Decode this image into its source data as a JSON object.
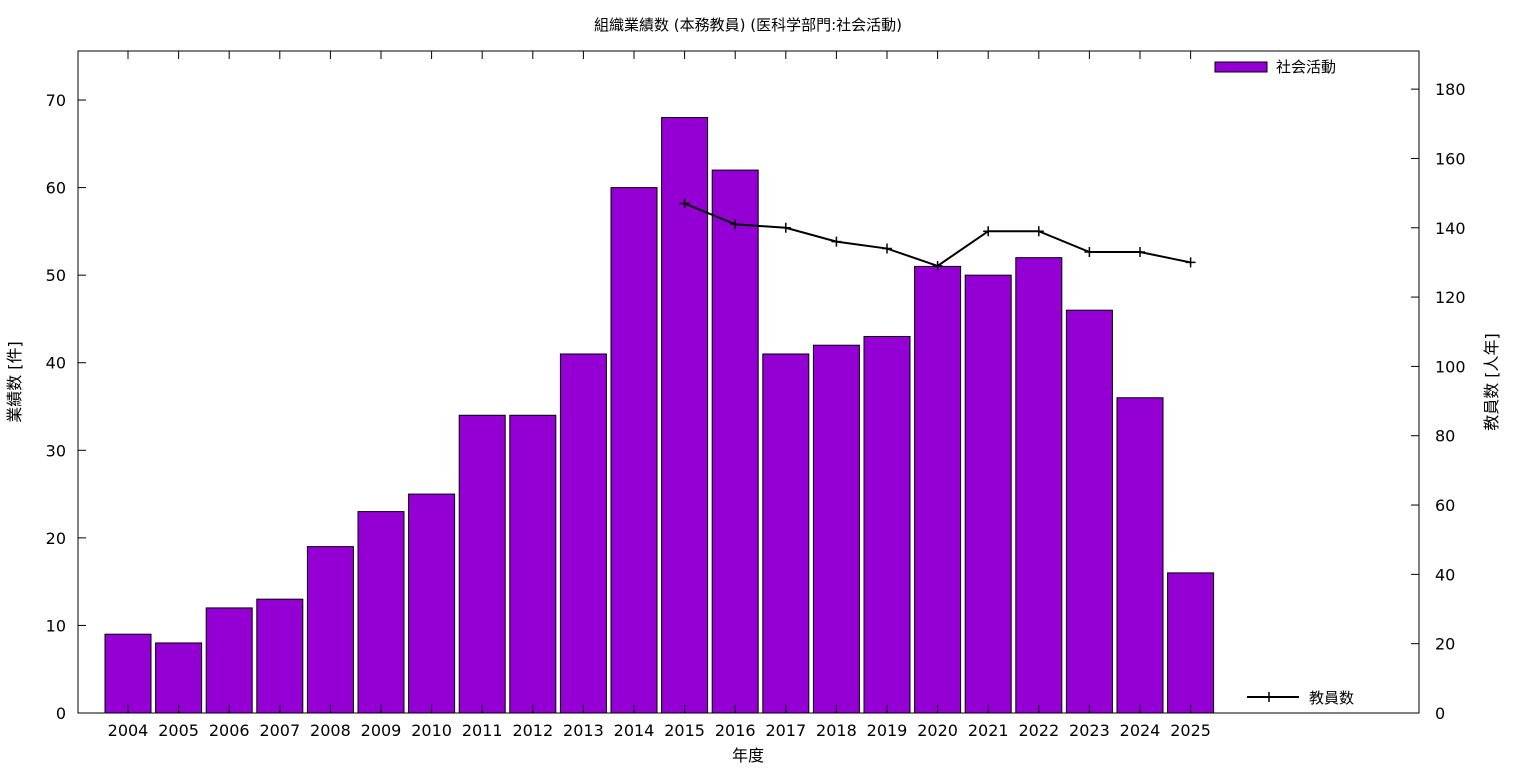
{
  "chart_data": {
    "type": "bar",
    "title": "組織業績数 (本務教員) (医科学部門:社会活動)",
    "xlabel": "年度",
    "ylabel": "業績数 [件]",
    "y2label": "教員数 [人年]",
    "categories": [
      "2004",
      "2005",
      "2006",
      "2007",
      "2008",
      "2009",
      "2010",
      "2011",
      "2012",
      "2013",
      "2014",
      "2015",
      "2016",
      "2017",
      "2018",
      "2019",
      "2020",
      "2021",
      "2022",
      "2023",
      "2024",
      "2025"
    ],
    "series": [
      {
        "name": "社会活動",
        "type": "bar",
        "axis": "left",
        "color": "#9400D3",
        "values": [
          9,
          8,
          12,
          13,
          19,
          23,
          25,
          34,
          34,
          41,
          60,
          68,
          62,
          41,
          42,
          43,
          51,
          50,
          52,
          46,
          36,
          16
        ]
      },
      {
        "name": "教員数",
        "type": "line",
        "axis": "right",
        "color": "#000000",
        "values": [
          null,
          null,
          null,
          null,
          null,
          null,
          null,
          null,
          null,
          null,
          null,
          147,
          141,
          140,
          136,
          134,
          129,
          139,
          139,
          133,
          133,
          130
        ]
      }
    ],
    "ylim": [
      0,
      75.6
    ],
    "y2lim": [
      0,
      191
    ],
    "yticks": [
      0,
      10,
      20,
      30,
      40,
      50,
      60,
      70
    ],
    "y2ticks": [
      0,
      20,
      40,
      60,
      80,
      100,
      120,
      140,
      160,
      180
    ],
    "grid": false,
    "legend": [
      "top-right",
      "bottom-right"
    ]
  }
}
